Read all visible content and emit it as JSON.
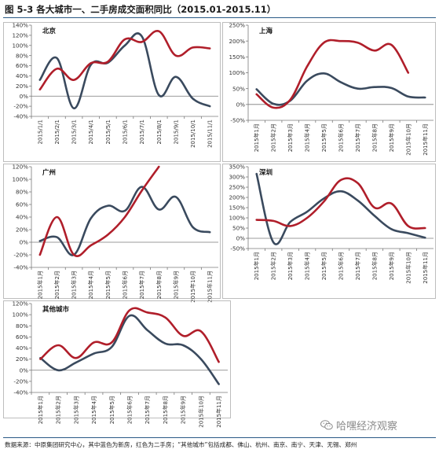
{
  "title": "图 5-3  各大城市一、二手房成交面积同比（2015.01-2015.11）",
  "footnote": "数据来源：中原集团研究中心，其中蓝色为新房，红色为二手房；“其他城市”包括成都、佛山、杭州、南京、南宁、天津、无锡、郑州",
  "watermark": "哈嘿经济观察",
  "colors": {
    "new_home": "#3a4a5e",
    "second_hand": "#b01e2a",
    "rule": "#2a5a86"
  },
  "chart_data": [
    {
      "type": "line",
      "title": "北京",
      "x": [
        "2015年1月",
        "2015年2月",
        "2015年3月",
        "2015年4月",
        "2015年5月",
        "2015年6月",
        "2015年7月",
        "2015年8月",
        "2015年9月",
        "2015年10月",
        "2015年11月"
      ],
      "x_tick_labels": [
        "2015/1/1",
        "2015/2/1",
        "2015/3/1",
        "2015/4/1",
        "2015/5/1",
        "2015/6/1",
        "2015/7/1",
        "2015/8/1",
        "2015/9/1",
        "2015/10/1",
        "2015/11/1"
      ],
      "ylim": [
        -40,
        140
      ],
      "yticks": [
        -40,
        -20,
        0,
        20,
        40,
        60,
        80,
        100,
        120,
        140
      ],
      "ytick_labels": [
        "-40%",
        "-20%",
        "0%",
        "20%",
        "40%",
        "60%",
        "80%",
        "100%",
        "120%",
        "140%"
      ],
      "series": [
        {
          "color_key": "new_home",
          "values": [
            32,
            75,
            -24,
            62,
            66,
            100,
            118,
            2,
            38,
            -5,
            -20
          ]
        },
        {
          "color_key": "second_hand",
          "values": [
            13,
            54,
            32,
            65,
            68,
            112,
            107,
            128,
            80,
            96,
            94
          ]
        }
      ]
    },
    {
      "type": "line",
      "title": "上海",
      "x": [
        "2015年1月",
        "2015年2月",
        "2015年3月",
        "2015年4月",
        "2015年5月",
        "2015年6月",
        "2015年7月",
        "2015年8月",
        "2015年9月",
        "2015年10月",
        "2015年11月"
      ],
      "x_tick_labels": [
        "2015年1月",
        "2015年2月",
        "2015年3月",
        "2015年4月",
        "2015年5月",
        "2015年6月",
        "2015年7月",
        "2015年8月",
        "2015年9月",
        "2015年10月",
        "2015年11月"
      ],
      "ylim": [
        -50,
        250
      ],
      "yticks": [
        -50,
        0,
        50,
        100,
        150,
        200,
        250
      ],
      "ytick_labels": [
        "-50%",
        "0%",
        "50%",
        "100%",
        "150%",
        "200%",
        "250%"
      ],
      "series": [
        {
          "color_key": "new_home",
          "values": [
            48,
            2,
            12,
            75,
            98,
            70,
            50,
            55,
            52,
            25,
            22
          ]
        },
        {
          "color_key": "second_hand",
          "values": [
            32,
            -10,
            15,
            120,
            195,
            200,
            195,
            170,
            188,
            100,
            null
          ]
        }
      ]
    },
    {
      "type": "line",
      "title": "广州",
      "x": [
        "2015年1月",
        "2015年2月",
        "2015年3月",
        "2015年4月",
        "2015年5月",
        "2015年6月",
        "2015年7月",
        "2015年8月",
        "2015年9月",
        "2015年10月",
        "2015年11月"
      ],
      "x_tick_labels": [
        "2015年1月",
        "2015年2月",
        "2015年3月",
        "2015年4月",
        "2015年5月",
        "2015年6月",
        "2015年7月",
        "2015年8月",
        "2015年9月",
        "2015年10月",
        "2015年11月"
      ],
      "ylim": [
        -40,
        120
      ],
      "yticks": [
        -40,
        -20,
        0,
        20,
        40,
        60,
        80,
        100,
        120
      ],
      "ytick_labels": [
        "-40%",
        "-20%",
        "0%",
        "20%",
        "40%",
        "60%",
        "80%",
        "100%",
        "120%"
      ],
      "series": [
        {
          "color_key": "new_home",
          "values": [
            2,
            8,
            -20,
            38,
            58,
            50,
            88,
            52,
            72,
            24,
            16
          ]
        },
        {
          "color_key": "second_hand",
          "values": [
            -20,
            40,
            -20,
            -5,
            12,
            40,
            82,
            120,
            null,
            null,
            null
          ]
        }
      ]
    },
    {
      "type": "line",
      "title": "深圳",
      "x": [
        "2015年1月",
        "2015年2月",
        "2015年3月",
        "2015年4月",
        "2015年5月",
        "2015年6月",
        "2015年7月",
        "2015年8月",
        "2015年9月",
        "2015年10月",
        "2015年11月"
      ],
      "x_tick_labels": [
        "2015年1月",
        "2015年2月",
        "2015年3月",
        "2015年4月",
        "2015年5月",
        "2015年6月",
        "2015年7月",
        "2015年8月",
        "2015年9月",
        "2015年10月",
        "2015年11月"
      ],
      "ylim": [
        -50,
        350
      ],
      "yticks": [
        -50,
        0,
        50,
        100,
        150,
        200,
        250,
        300,
        350
      ],
      "ytick_labels": [
        "-50%",
        "0%",
        "50%",
        "100%",
        "150%",
        "200%",
        "250%",
        "300%",
        "350%"
      ],
      "series": [
        {
          "color_key": "new_home",
          "values": [
            315,
            -20,
            80,
            130,
            195,
            230,
            185,
            110,
            45,
            25,
            3
          ]
        },
        {
          "color_key": "second_hand",
          "values": [
            90,
            85,
            60,
            100,
            180,
            285,
            270,
            150,
            170,
            60,
            50
          ]
        }
      ]
    },
    {
      "type": "line",
      "title": "其他城市",
      "x": [
        "2015年1月",
        "2015年2月",
        "2015年3月",
        "2015年4月",
        "2015年5月",
        "2015年6月",
        "2015年7月",
        "2015年8月",
        "2015年9月",
        "2015年10月",
        "2015年11月"
      ],
      "x_tick_labels": [
        "2015年1月",
        "2015年2月",
        "2015年3月",
        "2015年4月",
        "2015年5月",
        "2015年6月",
        "2015年7月",
        "2015年8月",
        "2015年9月",
        "2015年10月",
        "2015年11月"
      ],
      "ylim": [
        -40,
        120
      ],
      "yticks": [
        -40,
        -20,
        0,
        20,
        40,
        60,
        80,
        100,
        120
      ],
      "ytick_labels": [
        "-40%",
        "-20%",
        "0%",
        "20%",
        "40%",
        "60%",
        "80%",
        "100%",
        "120%"
      ],
      "series": [
        {
          "color_key": "new_home",
          "values": [
            22,
            0,
            14,
            30,
            42,
            98,
            72,
            48,
            45,
            20,
            -25
          ]
        },
        {
          "color_key": "second_hand",
          "values": [
            20,
            45,
            22,
            50,
            50,
            108,
            104,
            95,
            62,
            70,
            15
          ]
        }
      ]
    }
  ]
}
